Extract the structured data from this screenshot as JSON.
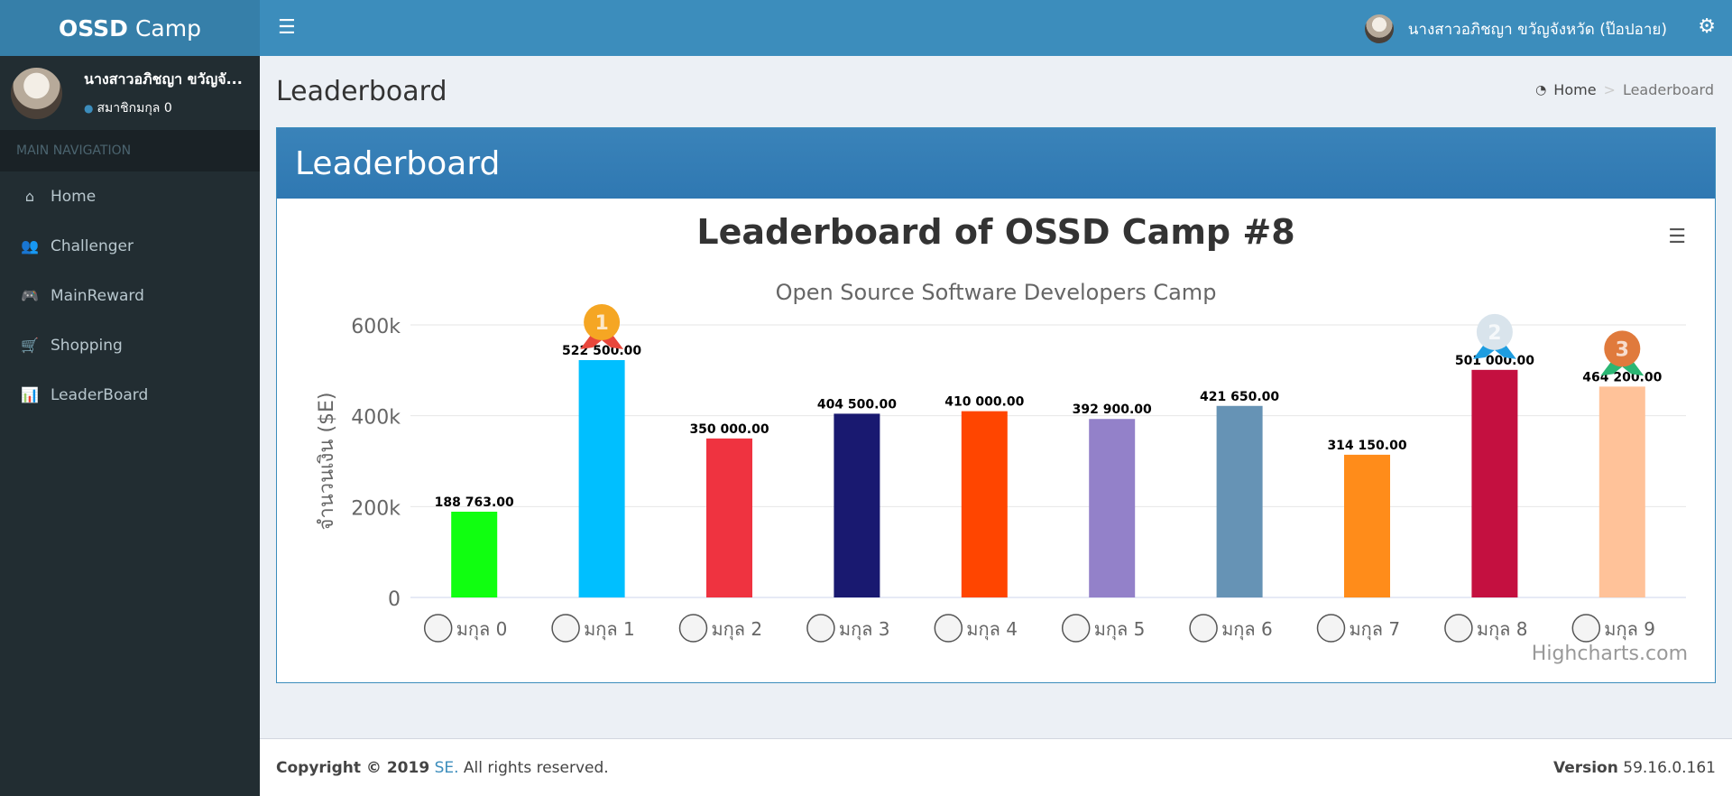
{
  "app": {
    "logo_bold": "OSSD",
    "logo_rest": "Camp"
  },
  "user": {
    "name": "นางสาวอภิชญา ขวัญจังหวัด (ป๊อปอาย)",
    "short_name": "นางสาวอภิชญา ขวัญจั...",
    "status": "สมาชิกมกุล 0"
  },
  "sidebar": {
    "header": "MAIN NAVIGATION",
    "items": [
      {
        "label": "Home",
        "icon": "home-icon",
        "glyph": "⌂"
      },
      {
        "label": "Challenger",
        "icon": "users-icon",
        "glyph": "👥"
      },
      {
        "label": "MainReward",
        "icon": "gamepad-icon",
        "glyph": "🎮"
      },
      {
        "label": "Shopping",
        "icon": "cart-icon",
        "glyph": "🛒"
      },
      {
        "label": "LeaderBoard",
        "icon": "bar-chart-icon",
        "glyph": "📊"
      }
    ]
  },
  "content": {
    "title": "Leaderboard",
    "breadcrumb": {
      "home": "Home",
      "separator": ">",
      "current": "Leaderboard"
    },
    "box_title": "Leaderboard"
  },
  "chart_data": {
    "type": "bar",
    "title": "Leaderboard of OSSD Camp #8",
    "subtitle": "Open Source Software Developers Camp",
    "ylabel": "จำนวนเงิน ($E)",
    "ylim": [
      0,
      600000
    ],
    "yticks": [
      "0",
      "200k",
      "400k",
      "600k"
    ],
    "grid": true,
    "categories": [
      "มกุล 0",
      "มกุล 1",
      "มกุล 2",
      "มกุล 3",
      "มกุล 4",
      "มกุล 5",
      "มกุล 6",
      "มกุล 7",
      "มกุล 8",
      "มกุล 9"
    ],
    "values": [
      188763,
      522500,
      350000,
      404500,
      410000,
      392900,
      421650,
      314150,
      501000,
      464200
    ],
    "data_labels": [
      "188 763.00",
      "522 500.00",
      "350 000.00",
      "404 500.00",
      "410 000.00",
      "392 900.00",
      "421 650.00",
      "314 150.00",
      "501 000.00",
      "464 200.00"
    ],
    "colors": [
      "#10ff10",
      "#00bfff",
      "#ef3340",
      "#191970",
      "#ff4500",
      "#9381c9",
      "#6693b5",
      "#ff8c1a",
      "#c41040",
      "#ffc299"
    ],
    "medals": [
      {
        "category_index": 1,
        "rank": "1",
        "color": "#f5a623",
        "ribbon": "#e8473c"
      },
      {
        "category_index": 8,
        "rank": "2",
        "color": "#d9e4ec",
        "ribbon": "#1e9de0"
      },
      {
        "category_index": 9,
        "rank": "3",
        "color": "#e07a3c",
        "ribbon": "#2bb673"
      }
    ],
    "credits": "Highcharts.com"
  },
  "footer": {
    "copyright_prefix": "Copyright © 2019",
    "company": "SE.",
    "rights": "All rights reserved.",
    "version_label": "Version",
    "version": "59.16.0.161"
  }
}
